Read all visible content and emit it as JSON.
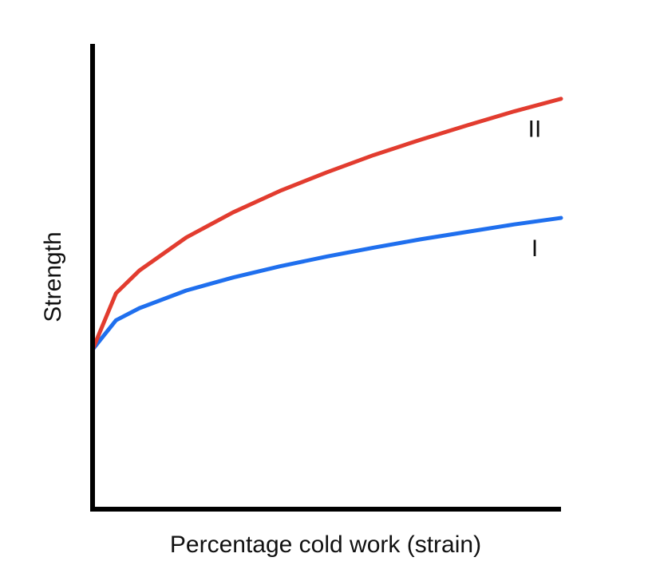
{
  "chart_data": {
    "type": "line",
    "x_label": "Percentage cold work (strain)",
    "y_label": "Strength",
    "x": [
      0,
      5,
      10,
      20,
      30,
      40,
      50,
      60,
      70,
      80,
      90,
      100
    ],
    "xlim": [
      0,
      100
    ],
    "ylim": [
      0,
      100
    ],
    "series": [
      {
        "name": "I",
        "color": "#1f6fee",
        "values": [
          34.3,
          40.6,
          43.2,
          47.0,
          49.8,
          52.2,
          54.3,
          56.2,
          58.0,
          59.6,
          61.2,
          62.6
        ]
      },
      {
        "name": "II",
        "color": "#e23c2f",
        "values": [
          34.3,
          46.4,
          51.3,
          58.4,
          63.8,
          68.4,
          72.4,
          76.1,
          79.4,
          82.5,
          85.5,
          88.2
        ]
      }
    ]
  }
}
